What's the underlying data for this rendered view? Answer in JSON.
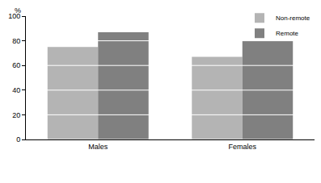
{
  "chart_data": {
    "type": "bar",
    "y_label": "%",
    "categories": [
      "Males",
      "Females"
    ],
    "series": [
      {
        "name": "Non-remote",
        "color": "#b4b4b4",
        "values": [
          75,
          67
        ]
      },
      {
        "name": "Remote",
        "color": "#808080",
        "values": [
          87,
          80
        ]
      }
    ],
    "ylim": [
      0,
      100
    ],
    "yticks": [
      0,
      20,
      40,
      60,
      80,
      100
    ],
    "grid": true,
    "legend": "top right"
  }
}
